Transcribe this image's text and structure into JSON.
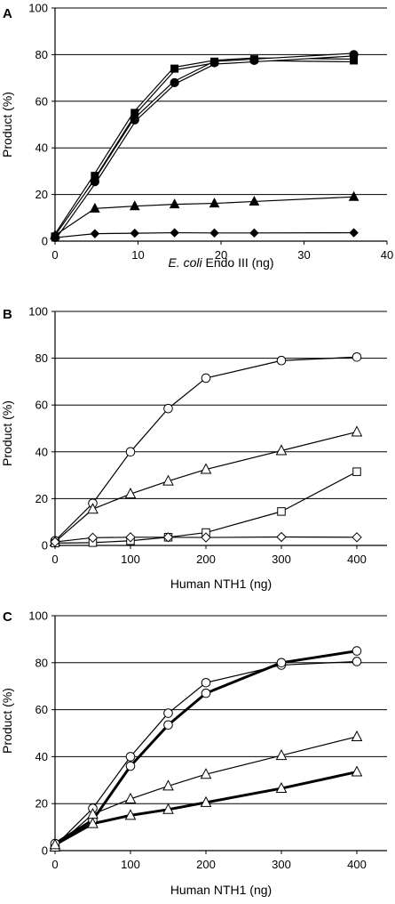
{
  "chart_data": [
    {
      "type": "line",
      "panel_label": "A",
      "xlabel_italic": "E. coli",
      "xlabel_rest": " Endo III (ng)",
      "ylabel": "Product (%)",
      "xlim": [
        0,
        40
      ],
      "ylim": [
        0,
        100
      ],
      "xticks": [
        0,
        10,
        20,
        30,
        40
      ],
      "yticks": [
        0,
        20,
        40,
        60,
        80,
        100
      ],
      "grid": "horizontal",
      "series": [
        {
          "marker": "square-filled",
          "line": "thin-double",
          "x": [
            0,
            4.8,
            9.6,
            14.4,
            19.2,
            24,
            36
          ],
          "y": [
            2,
            28,
            55,
            74,
            77,
            78,
            77.5
          ]
        },
        {
          "marker": "circle-filled",
          "line": "thin-double",
          "x": [
            0,
            4.8,
            9.6,
            14.4,
            19.2,
            24,
            36
          ],
          "y": [
            1.5,
            25.5,
            52,
            68,
            76.5,
            77.5,
            80
          ]
        },
        {
          "marker": "triangle-filled",
          "line": "thin",
          "x": [
            0,
            4.8,
            9.6,
            14.4,
            19.2,
            24,
            36
          ],
          "y": [
            2.5,
            14,
            15,
            15.8,
            16.2,
            17,
            19
          ]
        },
        {
          "marker": "diamond-filled",
          "line": "thin",
          "x": [
            0,
            4.8,
            9.6,
            14.4,
            19.2,
            24,
            36
          ],
          "y": [
            1.5,
            3.2,
            3.4,
            3.6,
            3.5,
            3.5,
            3.6
          ]
        }
      ]
    },
    {
      "type": "line",
      "panel_label": "B",
      "xlabel": "Human NTH1 (ng)",
      "ylabel": "Product (%)",
      "xlim": [
        0,
        440
      ],
      "ylim": [
        0,
        100
      ],
      "xticks": [
        0,
        100,
        200,
        300,
        400
      ],
      "yticks": [
        0,
        20,
        40,
        60,
        80,
        100
      ],
      "grid": "horizontal",
      "series": [
        {
          "marker": "circle-open",
          "line": "thin",
          "x": [
            0,
            50,
            100,
            150,
            200,
            300,
            400
          ],
          "y": [
            2,
            18,
            40,
            58.5,
            71.5,
            79,
            80.5
          ]
        },
        {
          "marker": "triangle-open",
          "line": "thin",
          "x": [
            0,
            50,
            100,
            150,
            200,
            300,
            400
          ],
          "y": [
            1.5,
            15.5,
            22,
            27.5,
            32.5,
            40.5,
            48.5
          ]
        },
        {
          "marker": "square-open",
          "line": "thin",
          "x": [
            0,
            50,
            100,
            150,
            200,
            300,
            400
          ],
          "y": [
            1,
            1.2,
            2,
            3.5,
            5.5,
            14.5,
            31.5
          ]
        },
        {
          "marker": "diamond-open",
          "line": "thin",
          "x": [
            0,
            50,
            100,
            150,
            200,
            300,
            400
          ],
          "y": [
            1.5,
            3.3,
            3.5,
            3.5,
            3.4,
            3.6,
            3.5
          ]
        }
      ]
    },
    {
      "type": "line",
      "panel_label": "C",
      "xlabel": "Human NTH1 (ng)",
      "ylabel": "Product (%)",
      "xlim": [
        0,
        440
      ],
      "ylim": [
        0,
        100
      ],
      "xticks": [
        0,
        100,
        200,
        300,
        400
      ],
      "yticks": [
        0,
        20,
        40,
        60,
        80,
        100
      ],
      "grid": "horizontal",
      "series": [
        {
          "marker": "circle-open",
          "line": "thin",
          "x": [
            0,
            50,
            100,
            150,
            200,
            300,
            400
          ],
          "y": [
            2,
            18,
            40,
            58.5,
            71.5,
            79,
            80.5
          ]
        },
        {
          "marker": "circle-open",
          "line": "thick",
          "x": [
            0,
            50,
            100,
            150,
            200,
            300,
            400
          ],
          "y": [
            3,
            13,
            36,
            53.5,
            67,
            80,
            85
          ]
        },
        {
          "marker": "triangle-open",
          "line": "thin",
          "x": [
            0,
            50,
            100,
            150,
            200,
            300,
            400
          ],
          "y": [
            1.5,
            15.5,
            22,
            27.5,
            32.5,
            40.5,
            48.5
          ]
        },
        {
          "marker": "triangle-open",
          "line": "thick",
          "x": [
            0,
            50,
            100,
            150,
            200,
            300,
            400
          ],
          "y": [
            2.5,
            11.5,
            15,
            17.5,
            20.5,
            26.5,
            33.5
          ]
        }
      ]
    }
  ]
}
